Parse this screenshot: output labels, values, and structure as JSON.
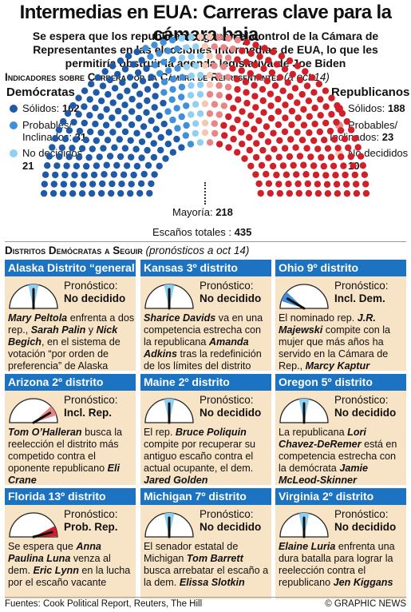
{
  "title": "Intermedias en EUA: Carreras clave para la cámara baja",
  "subtitle": "Se espera que los republicanos ganen el control de la Cámara de Representantes en las elecciones intermedias de EUA, lo que les permitiría obstruir la agenda legislativa de Joe Biden",
  "section1": {
    "title": "Indicadores sobre Carrera por la Cámara de Representantes",
    "note": "(a oct 14)"
  },
  "chart_data": {
    "type": "parliament",
    "groups": [
      {
        "party": "Demócratas",
        "label": "Sólidos:",
        "value": 162,
        "color": "#1f5aa8"
      },
      {
        "party": "Demócratas",
        "label": "Probables/ Inclinados:",
        "value": 31,
        "color": "#3f8fd9"
      },
      {
        "party": "Demócratas",
        "label": "No decididos",
        "value": 21,
        "color": "#8fd0f2"
      },
      {
        "party": "Republicanos",
        "label": "No decididos",
        "value": 10,
        "color": "#f6c7b2"
      },
      {
        "party": "Republicanos",
        "label": "Probables/ Inclinados:",
        "value": 23,
        "color": "#e88585"
      },
      {
        "party": "Republicanos",
        "label": "Sólidos:",
        "value": 188,
        "color": "#d0202a"
      }
    ],
    "majority": {
      "label": "Mayoría:",
      "value": 218
    },
    "total": {
      "label": "Escaños totales :",
      "value": 435
    }
  },
  "legend": {
    "dem_title": "Demócratas",
    "rep_title": "Republicanos",
    "dem": [
      {
        "label": "Sólidos:",
        "value": "162",
        "color": "#1f5aa8"
      },
      {
        "label": "Probables/",
        "label2": "Inclinados:",
        "value": "31",
        "color": "#3f8fd9"
      },
      {
        "label": "No decididos",
        "value": "21",
        "color": "#8fd0f2"
      }
    ],
    "rep": [
      {
        "label": "Sólidos:",
        "value": "188",
        "color": "#d0202a"
      },
      {
        "label": "Probables/",
        "label2": "Inclinados:",
        "value": "23",
        "color": "#e88585"
      },
      {
        "label": "No decididos",
        "value": "10",
        "color": "#f6c7b2"
      }
    ]
  },
  "section2": {
    "title": "Distritos Demócratas a Seguir",
    "note": "(pronósticos a oct 14)"
  },
  "forecast_label": "Pronóstico:",
  "gauge_colors": {
    "Incl. Dem.": "#3f8fd9",
    "Incl. Rep.": "#e88585",
    "Prob. Rep.": "#d0202a",
    "No decidido": "#8fd0f2"
  },
  "gauge_positions": {
    "Incl. Dem.": 0.17,
    "Incl. Rep.": 0.83,
    "Prob. Rep.": 0.92,
    "No decidido": 0.5
  },
  "districts": [
    {
      "name": "Alaska Distrito “general”",
      "forecast": "No decidido",
      "desc": [
        [
          "b",
          "Mary Peltola"
        ],
        [
          "t",
          " enfrenta a dos rep., "
        ],
        [
          "b",
          "Sarah Palin"
        ],
        [
          "t",
          " y "
        ],
        [
          "b",
          "Nick Begich"
        ],
        [
          "t",
          ", en el sistema de votación “por orden de preferencia” de Alaska"
        ]
      ]
    },
    {
      "name": "Kansas 3º distrito",
      "forecast": "No decidido",
      "desc": [
        [
          "b",
          "Sharice Davids"
        ],
        [
          "t",
          " va en una competencia estrecha con la republicana "
        ],
        [
          "b",
          "Amanda Adkins"
        ],
        [
          "t",
          " tras la redefinición de los límites del distrito"
        ]
      ]
    },
    {
      "name": "Ohio 9º distrito",
      "forecast": "Incl. Dem.",
      "desc": [
        [
          "t",
          "El nominado rep. "
        ],
        [
          "b",
          "J.R. Majewski"
        ],
        [
          "t",
          " compite con la mujer que más años ha servido en la Cámara de Rep., "
        ],
        [
          "b",
          "Marcy Kaptur"
        ]
      ]
    },
    {
      "name": "Arizona 2º distrito",
      "forecast": "Incl. Rep.",
      "desc": [
        [
          "b",
          "Tom O’Halleran"
        ],
        [
          "t",
          " busca la reelección el distrito más competido contra el oponente republicano "
        ],
        [
          "b",
          "Eli Crane"
        ]
      ]
    },
    {
      "name": "Maine 2º distrito",
      "forecast": "No decidido",
      "desc": [
        [
          "t",
          "El rep. "
        ],
        [
          "b",
          "Bruce Poliquin"
        ],
        [
          "t",
          " compite por recuperar su antiguo escaño contra el actual ocupante, el dem. "
        ],
        [
          "b",
          "Jared Golden"
        ]
      ]
    },
    {
      "name": "Oregon 5º distrito",
      "forecast": "No decidido",
      "desc": [
        [
          "t",
          "La republicana "
        ],
        [
          "b",
          "Lori Chavez-DeRemer"
        ],
        [
          "t",
          " está en competencia estrecha con la demócrata "
        ],
        [
          "b",
          "Jamie McLeod-Skinner"
        ]
      ]
    },
    {
      "name": "Florida 13º distrito",
      "forecast": "Prob. Rep.",
      "desc": [
        [
          "t",
          "Se espera que "
        ],
        [
          "b",
          "Anna Paulina Luna"
        ],
        [
          "t",
          " venza al dem. "
        ],
        [
          "b",
          "Eric Lynn"
        ],
        [
          "t",
          " en la lucha por el escaño vacante"
        ]
      ]
    },
    {
      "name": "Michigan 7º distrito",
      "forecast": "No decidido",
      "desc": [
        [
          "t",
          "El senador estatal de Michigan "
        ],
        [
          "b",
          "Tom Barrett"
        ],
        [
          "t",
          " busca arrebatar el escaño a la dem. "
        ],
        [
          "b",
          "Elissa Slotkin"
        ]
      ]
    },
    {
      "name": "Virginia 2º distrito",
      "forecast": "No decidido",
      "desc": [
        [
          "b",
          "Elaine Luria"
        ],
        [
          "t",
          " enfrenta una dura batalla para lograr la reelección contra el republicano "
        ],
        [
          "b",
          "Jen Kiggans"
        ]
      ]
    }
  ],
  "footer": {
    "sources": "Fuentes: Cook Political Report, Reuters, The Hill",
    "credit": "© GRAPHIC NEWS"
  }
}
